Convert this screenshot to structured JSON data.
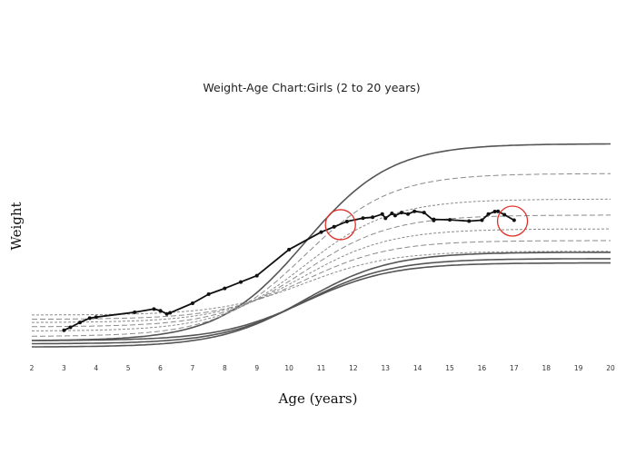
{
  "chart_data": {
    "type": "line",
    "title": "Weight-Age Chart:Girls (2 to 20 years)",
    "xlabel": "Age (years)",
    "ylabel": "Weight",
    "xlim": [
      2,
      20
    ],
    "x_ticks": [
      "2",
      "3",
      "4",
      "5",
      "6",
      "7",
      "8",
      "9",
      "10",
      "11",
      "12",
      "13",
      "14",
      "15",
      "16",
      "17",
      "18",
      "19",
      "20"
    ],
    "grid": false,
    "reference_curves": [
      {
        "bottom": 0.03,
        "top": 0.955
      },
      {
        "bottom": 0.05,
        "top": 0.815
      },
      {
        "bottom": 0.075,
        "top": 0.695
      },
      {
        "bottom": 0.095,
        "top": 0.62
      },
      {
        "bottom": 0.115,
        "top": 0.555
      },
      {
        "bottom": 0.13,
        "top": 0.5
      },
      {
        "bottom": 0.15,
        "top": 0.45
      },
      {
        "bottom": 0.0,
        "top": 0.445
      },
      {
        "bottom": 0.015,
        "top": 0.415
      },
      {
        "bottom": 0.03,
        "top": 0.395
      }
    ],
    "series": [
      {
        "color": "#111111",
        "x": [
          3.0,
          3.2,
          3.5,
          3.8,
          4.0,
          5.2,
          5.8,
          6.0,
          6.2,
          6.3,
          7.0,
          7.5,
          8.0,
          8.5,
          9.0,
          10.0,
          11.0,
          11.4,
          11.8,
          12.3,
          12.6,
          12.9,
          13.0,
          13.2,
          13.3,
          13.5,
          13.7,
          13.9,
          14.2,
          14.5,
          14.5,
          15.0,
          15.6,
          16.0,
          16.2,
          16.4,
          16.5,
          16.7,
          17.0
        ],
        "y": [
          0.078,
          0.092,
          0.115,
          0.135,
          0.14,
          0.163,
          0.178,
          0.17,
          0.155,
          0.16,
          0.205,
          0.248,
          0.275,
          0.305,
          0.335,
          0.458,
          0.54,
          0.565,
          0.59,
          0.606,
          0.61,
          0.625,
          0.605,
          0.628,
          0.618,
          0.632,
          0.625,
          0.638,
          0.632,
          0.595,
          0.6,
          0.598,
          0.592,
          0.596,
          0.625,
          0.637,
          0.638,
          0.622,
          0.596
        ]
      }
    ],
    "annotations": [
      {
        "shape": "circle",
        "color": "#e0302a",
        "x": 11.6,
        "y": 0.575
      },
      {
        "shape": "circle",
        "color": "#e0302a",
        "x": 16.95,
        "y": 0.592
      }
    ]
  }
}
